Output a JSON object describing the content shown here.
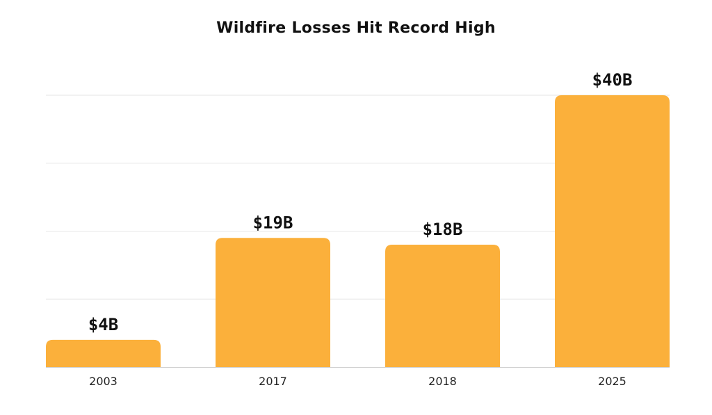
{
  "chart_data": {
    "type": "bar",
    "title": "Wildfire Losses Hit Record High",
    "categories": [
      "2003",
      "2017",
      "2018",
      "2025"
    ],
    "values": [
      4,
      19,
      18,
      40
    ],
    "data_labels": [
      "$4B",
      "$19B",
      "$18B",
      "$40B"
    ],
    "xlabel": "",
    "ylabel": "",
    "ylim": [
      0,
      40
    ],
    "grid": true,
    "gridlines_at": [
      10,
      20,
      30,
      40
    ],
    "bar_color": "#FBB03B"
  }
}
